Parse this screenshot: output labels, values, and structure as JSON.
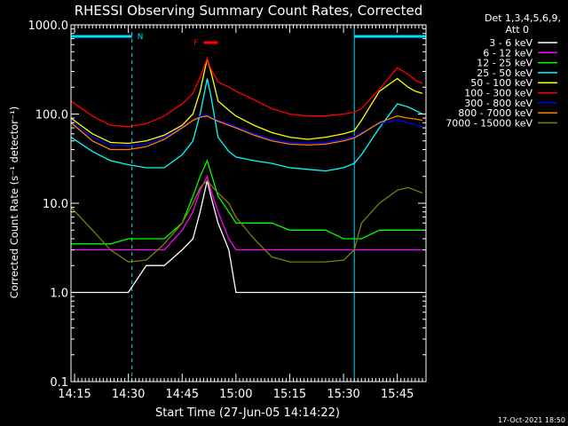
{
  "chart_data": {
    "type": "line",
    "title": "RHESSI Observing Summary Count Rates, Corrected",
    "xlabel": "Start Time (27-Jun-05 14:14:22)",
    "ylabel": "Corrected Count Rate (s⁻¹ detector⁻¹)",
    "yscale": "log",
    "ylim": [
      0.1,
      1000
    ],
    "xlim": [
      "14:14",
      "15:53"
    ],
    "x_tick_labels": [
      "14:15",
      "14:30",
      "14:45",
      "15:00",
      "15:15",
      "15:30",
      "15:45"
    ],
    "y_tick_labels": [
      "0.1",
      "1.0",
      "10.0",
      "100.0",
      "1000.0"
    ],
    "legend_title": "Det 1,3,4,5,6,9,",
    "legend_subtitle": "Att 0",
    "legend_position": "right",
    "footer": "17-Oct-2021 18:50",
    "annotations": {
      "night": "N",
      "flare": "F"
    },
    "colors": {
      "background": "#000000",
      "axes": "#ffffff",
      "night_bar": "#00e0ff",
      "flare_bar": "#ff0000"
    },
    "night_intervals": [
      [
        "14:14",
        "14:31"
      ],
      [
        "15:33",
        "15:53"
      ]
    ],
    "flare_interval": [
      "14:51",
      "14:55"
    ],
    "x": [
      "14:14",
      "14:20",
      "14:25",
      "14:30",
      "14:35",
      "14:40",
      "14:45",
      "14:48",
      "14:50",
      "14:52",
      "14:53",
      "14:55",
      "14:58",
      "15:00",
      "15:05",
      "15:10",
      "15:15",
      "15:20",
      "15:25",
      "15:30",
      "15:33",
      "15:35",
      "15:40",
      "15:45",
      "15:48",
      "15:50",
      "15:52"
    ],
    "series": [
      {
        "name": "3 - 6 keV",
        "color": "#ffffff",
        "values": [
          1,
          1,
          1,
          1,
          2,
          2,
          3,
          4,
          8,
          18,
          12,
          6,
          3,
          1,
          1,
          1,
          1,
          1,
          1,
          1,
          1,
          1,
          1,
          1,
          1,
          1,
          1
        ]
      },
      {
        "name": "6 - 12 keV",
        "color": "#ff00ff",
        "values": [
          3,
          3,
          3,
          3,
          3,
          3,
          5,
          8,
          14,
          20,
          14,
          8,
          4,
          3,
          3,
          3,
          3,
          3,
          3,
          3,
          3,
          3,
          3,
          3,
          3,
          3,
          3
        ]
      },
      {
        "name": "12 - 25 keV",
        "color": "#00ff00",
        "values": [
          3.5,
          3.5,
          3.5,
          4,
          4,
          4,
          6,
          12,
          20,
          30,
          22,
          12,
          8,
          6,
          6,
          6,
          5,
          5,
          5,
          4,
          4,
          4,
          5,
          5,
          5,
          5,
          5
        ]
      },
      {
        "name": "25 - 50 keV",
        "color": "#00ffff",
        "values": [
          55,
          38,
          30,
          27,
          25,
          25,
          35,
          50,
          100,
          250,
          160,
          55,
          38,
          33,
          30,
          28,
          25,
          24,
          23,
          25,
          28,
          35,
          70,
          130,
          120,
          110,
          100
        ]
      },
      {
        "name": "50 - 100 keV",
        "color": "#ffff00",
        "values": [
          90,
          60,
          48,
          47,
          50,
          58,
          75,
          100,
          180,
          420,
          300,
          140,
          110,
          95,
          75,
          62,
          55,
          52,
          55,
          60,
          65,
          85,
          180,
          250,
          200,
          180,
          170
        ]
      },
      {
        "name": "100 - 300 keV",
        "color": "#ff0000",
        "values": [
          140,
          95,
          75,
          72,
          78,
          95,
          130,
          170,
          260,
          420,
          320,
          230,
          200,
          180,
          145,
          115,
          100,
          95,
          95,
          100,
          105,
          115,
          190,
          330,
          280,
          240,
          220
        ]
      },
      {
        "name": "300 - 800 keV",
        "color": "#0000ff",
        "values": [
          85,
          55,
          45,
          44,
          46,
          55,
          72,
          85,
          95,
          98,
          92,
          85,
          78,
          72,
          60,
          52,
          48,
          47,
          48,
          52,
          56,
          62,
          78,
          85,
          80,
          76,
          72
        ]
      },
      {
        "name": "800 - 7000 keV",
        "color": "#ff8000",
        "values": [
          80,
          50,
          40,
          40,
          43,
          52,
          70,
          85,
          92,
          95,
          90,
          83,
          75,
          70,
          58,
          50,
          46,
          45,
          46,
          50,
          54,
          60,
          80,
          95,
          90,
          88,
          85
        ]
      },
      {
        "name": "7000 - 15000 keV",
        "color": "#808000",
        "values": [
          9,
          5,
          3,
          2.2,
          2.3,
          3.5,
          6,
          10,
          15,
          18,
          16,
          13,
          10,
          7,
          4,
          2.5,
          2.2,
          2.2,
          2.2,
          2.3,
          3,
          6,
          10,
          14,
          15,
          14,
          13
        ]
      }
    ]
  }
}
